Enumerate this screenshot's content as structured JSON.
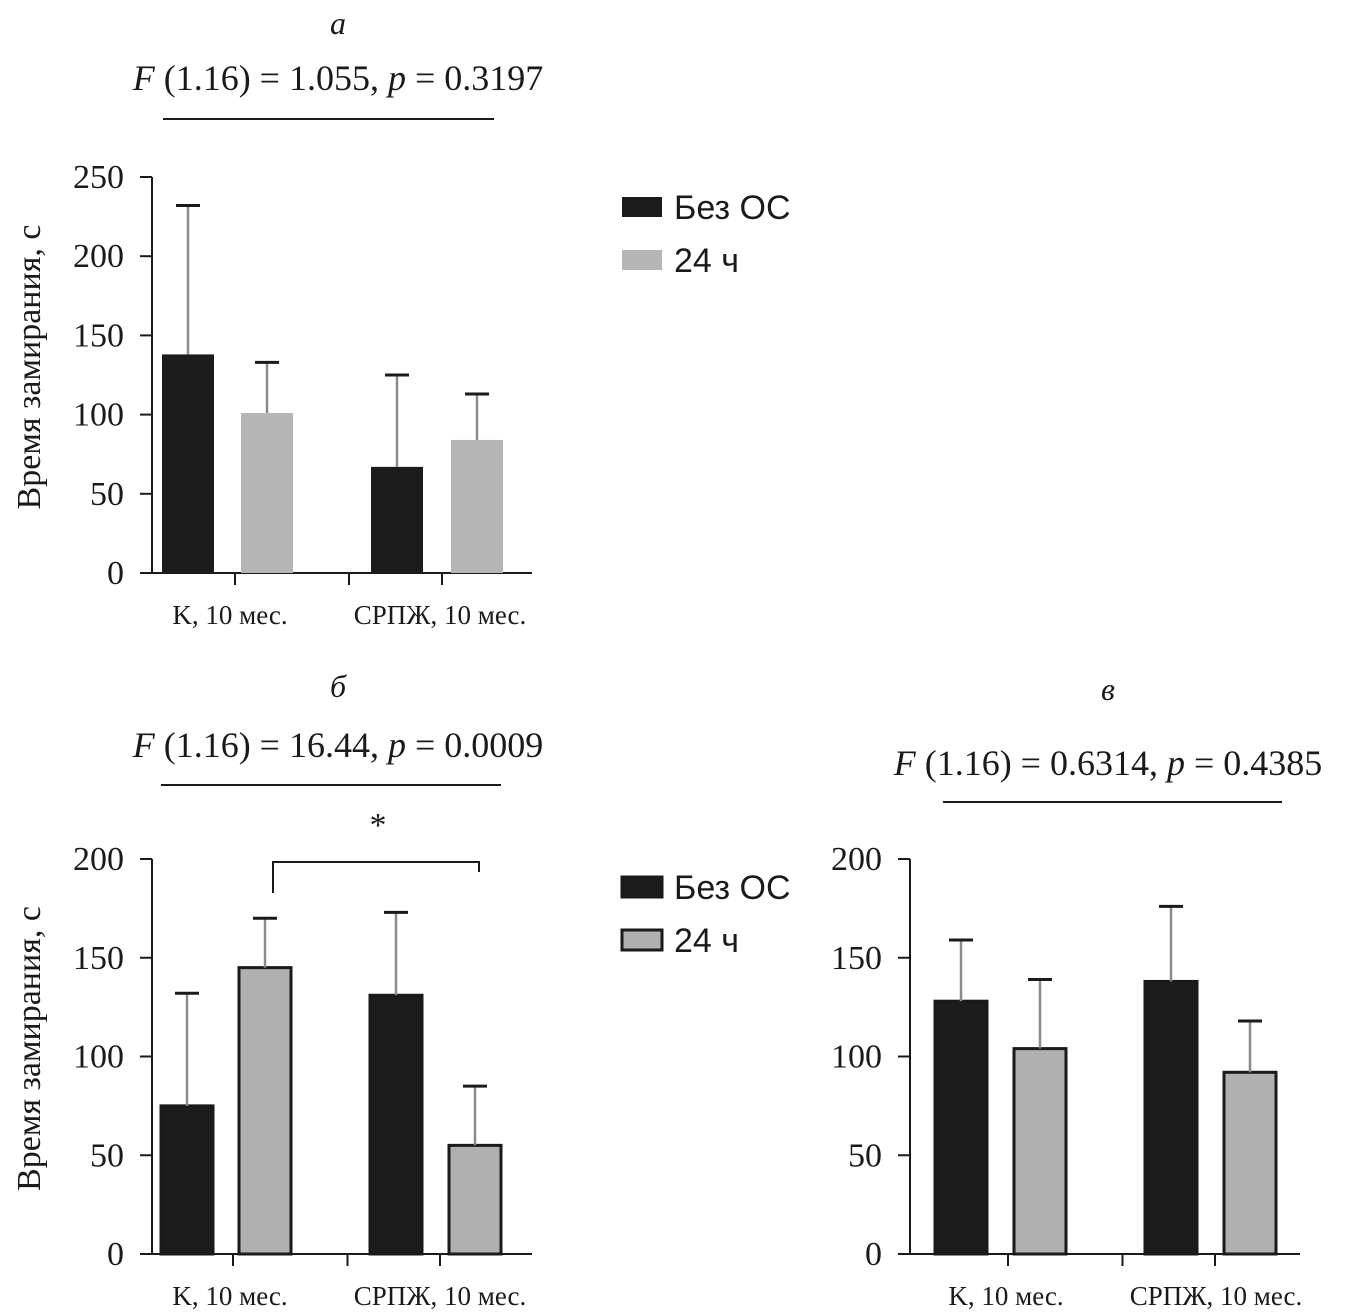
{
  "chart_data": [
    {
      "panel": "а",
      "type": "bar",
      "stat_label": "F (1.16) = 1.055, p = 0.3197",
      "ylabel": "Время замирания, с",
      "ylim": [
        0,
        250
      ],
      "yticks": [
        "0",
        "50",
        "100",
        "150",
        "200",
        "250"
      ],
      "categories": [
        "K, 10 мес.",
        "СРПЖ, 10 мес."
      ],
      "series": [
        {
          "name": "Без ОС",
          "color": "#1c1c1c",
          "values": [
            138,
            67
          ],
          "errors": [
            94,
            58
          ]
        },
        {
          "name": "24 ч",
          "color": "#b5b5b5",
          "values": [
            101,
            84
          ],
          "errors": [
            32,
            29
          ]
        }
      ],
      "legend": {
        "position": "right",
        "entries": [
          "Без ОС",
          "24 ч"
        ]
      },
      "significance": null
    },
    {
      "panel": "б",
      "type": "bar",
      "stat_label": "F (1.16) = 16.44, p = 0.0009",
      "ylabel": "Время замирания, с",
      "ylim": [
        0,
        200
      ],
      "yticks": [
        "0",
        "50",
        "100",
        "150",
        "200"
      ],
      "categories": [
        "K, 10 мес.",
        "СРПЖ, 10 мес."
      ],
      "series": [
        {
          "name": "Без ОС",
          "color": "#1c1c1c",
          "values": [
            75,
            131
          ],
          "errors": [
            57,
            42
          ]
        },
        {
          "name": "24 ч",
          "color": "#b0b0b0",
          "values": [
            145,
            55
          ],
          "errors": [
            25,
            30
          ]
        }
      ],
      "legend": {
        "position": "right",
        "entries": [
          "Без ОС",
          "24 ч"
        ]
      },
      "significance": {
        "label": "*",
        "from": "K, 10 мес. / 24 ч",
        "to": "СРПЖ, 10 мес. / 24 ч"
      }
    },
    {
      "panel": "в",
      "type": "bar",
      "stat_label": "F (1.16) = 0.6314, p = 0.4385",
      "ylabel": "",
      "ylim": [
        0,
        200
      ],
      "yticks": [
        "0",
        "50",
        "100",
        "150",
        "200"
      ],
      "categories": [
        "K, 10 мес.",
        "СРПЖ, 10 мес."
      ],
      "series": [
        {
          "name": "Без ОС",
          "color": "#1c1c1c",
          "values": [
            128,
            138
          ],
          "errors": [
            31,
            38
          ]
        },
        {
          "name": "24 ч",
          "color": "#b0b0b0",
          "values": [
            104,
            92
          ],
          "errors": [
            35,
            26
          ]
        }
      ],
      "legend": null,
      "significance": null
    }
  ]
}
